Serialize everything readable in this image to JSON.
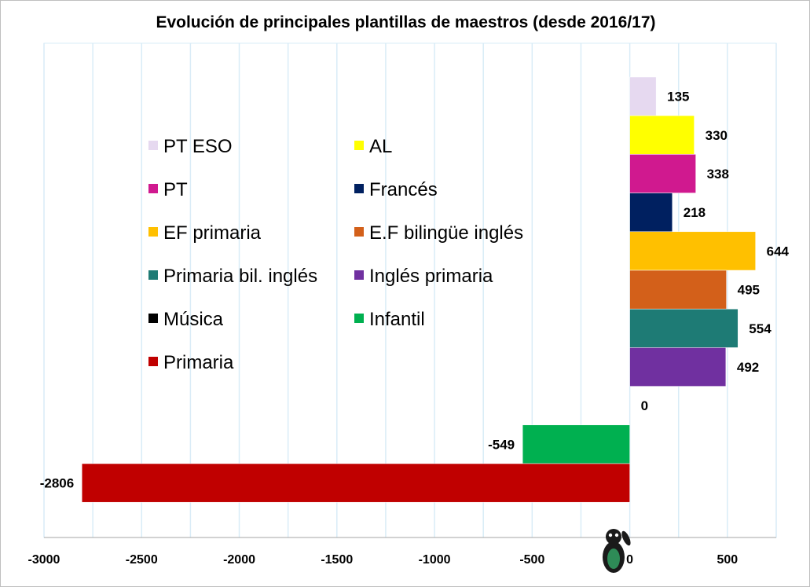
{
  "chart_data": {
    "type": "bar",
    "orientation": "horizontal",
    "title": "Evolución de principales plantillas de maestros (desde 2016/17)",
    "xlabel": "",
    "ylabel": "",
    "xlim": [
      -3000,
      750
    ],
    "x_ticks": [
      "-3000",
      "-2500",
      "-2000",
      "-1500",
      "-1000",
      "-500",
      "0",
      "500"
    ],
    "grid": true,
    "legend_position": "left-center",
    "series": [
      {
        "name": "PT ESO",
        "value": 135,
        "color": "#e6d9f0"
      },
      {
        "name": "AL",
        "value": 330,
        "color": "#ffff00"
      },
      {
        "name": "PT",
        "value": 338,
        "color": "#d0198f"
      },
      {
        "name": "Francés",
        "value": 218,
        "color": "#002060"
      },
      {
        "name": "EF primaria",
        "value": 644,
        "color": "#ffc000"
      },
      {
        "name": "E.F bilingüe inglés",
        "value": 495,
        "color": "#d3601a"
      },
      {
        "name": "Primaria bil. inglés",
        "value": 554,
        "color": "#1e7b75"
      },
      {
        "name": "Inglés primaria",
        "value": 492,
        "color": "#7030a0"
      },
      {
        "name": "Música",
        "value": 0,
        "color": "#000000"
      },
      {
        "name": "Infantil",
        "value": -549,
        "color": "#00b050"
      },
      {
        "name": "Primaria",
        "value": -2806,
        "color": "#c00000"
      }
    ],
    "legend_order": [
      "PT ESO",
      "AL",
      "PT",
      "Francés",
      "EF primaria",
      "E.F bilingüe inglés",
      "Primaria bil. inglés",
      "Inglés primaria",
      "Música",
      "Infantil",
      "Primaria"
    ]
  },
  "colors": {
    "grid": "#d9ecf7",
    "axis": "#a6a6a6"
  }
}
